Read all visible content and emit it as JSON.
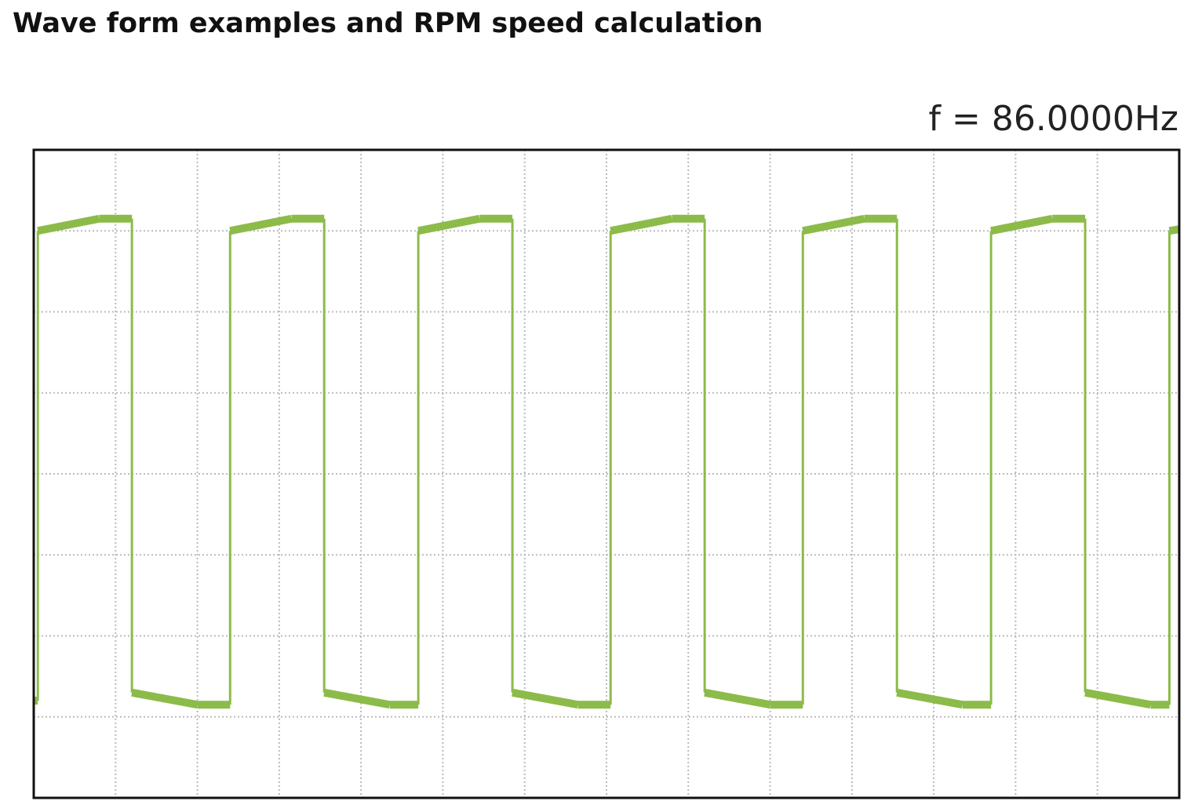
{
  "title": "Wave form examples and RPM speed calculation",
  "readout": {
    "frequency_text": "f = 86.0000Hz"
  },
  "colors": {
    "trace": "#8cbb4a",
    "grid": "#bbbbbb",
    "frame": "#111111",
    "background": "#ffffff"
  },
  "chart_data": {
    "type": "line",
    "title": "",
    "xlabel": "",
    "ylabel": "",
    "grid": true,
    "x_divisions": 14,
    "y_divisions": 8,
    "ylim": [
      0,
      8
    ],
    "xlim": [
      0,
      14
    ],
    "series": [
      {
        "points": [
          [
            0.0,
            1.2
          ],
          [
            0.05,
            1.2
          ],
          [
            0.05,
            7.0
          ],
          [
            0.8,
            7.15
          ],
          [
            1.2,
            7.15
          ],
          [
            1.2,
            1.3
          ],
          [
            2.0,
            1.15
          ],
          [
            2.4,
            1.15
          ],
          [
            2.4,
            7.0
          ],
          [
            3.15,
            7.15
          ],
          [
            3.55,
            7.15
          ],
          [
            3.55,
            1.3
          ],
          [
            4.35,
            1.15
          ],
          [
            4.7,
            1.15
          ],
          [
            4.7,
            7.0
          ],
          [
            5.45,
            7.15
          ],
          [
            5.85,
            7.15
          ],
          [
            5.85,
            1.3
          ],
          [
            6.65,
            1.15
          ],
          [
            7.05,
            1.15
          ],
          [
            7.05,
            7.0
          ],
          [
            7.8,
            7.15
          ],
          [
            8.2,
            7.15
          ],
          [
            8.2,
            1.3
          ],
          [
            9.0,
            1.15
          ],
          [
            9.4,
            1.15
          ],
          [
            9.4,
            7.0
          ],
          [
            10.15,
            7.15
          ],
          [
            10.55,
            7.15
          ],
          [
            10.55,
            1.3
          ],
          [
            11.35,
            1.15
          ],
          [
            11.7,
            1.15
          ],
          [
            11.7,
            7.0
          ],
          [
            12.45,
            7.15
          ],
          [
            12.85,
            7.15
          ],
          [
            12.85,
            1.3
          ],
          [
            13.65,
            1.15
          ],
          [
            13.88,
            1.15
          ],
          [
            13.88,
            7.0
          ],
          [
            14.0,
            7.02
          ]
        ]
      }
    ]
  }
}
